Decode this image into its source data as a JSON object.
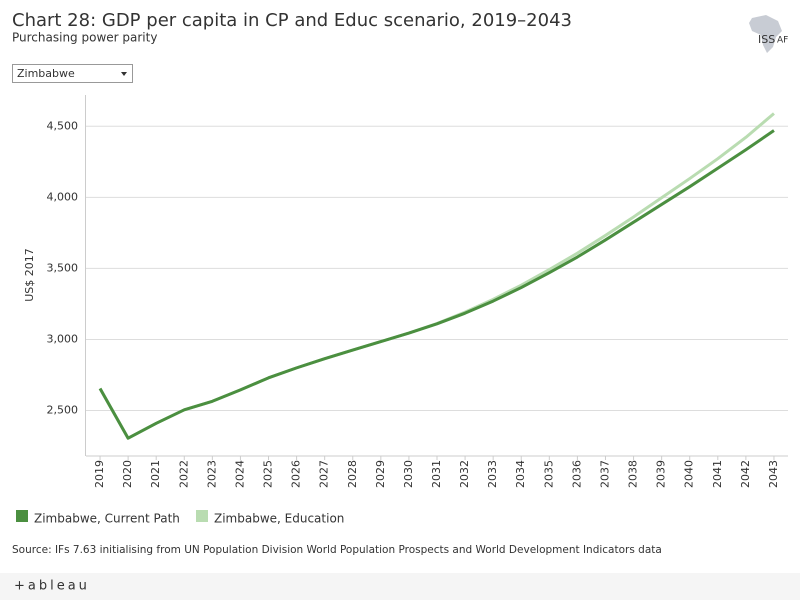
{
  "chart_data": {
    "type": "line",
    "title": "Chart 28: GDP per capita in CP and Educ scenario, 2019–2043",
    "subtitle": "Purchasing power parity",
    "y_label": "US$ 2017",
    "x": [
      2019,
      2020,
      2021,
      2022,
      2023,
      2024,
      2025,
      2026,
      2027,
      2028,
      2029,
      2030,
      2031,
      2032,
      2033,
      2034,
      2035,
      2036,
      2037,
      2038,
      2039,
      2040,
      2041,
      2042,
      2043
    ],
    "xlim": [
      2018.5,
      2043.5
    ],
    "series": [
      {
        "name": "Zimbabwe, Education",
        "color": "#b9dcb1",
        "values": [
          2655,
          2305,
          2410,
          2505,
          2565,
          2645,
          2730,
          2800,
          2865,
          2925,
          2985,
          3045,
          3112,
          3192,
          3282,
          3382,
          3492,
          3607,
          3732,
          3862,
          3997,
          4132,
          4272,
          4422,
          4590
        ]
      },
      {
        "name": "Zimbabwe, Current Path",
        "color": "#4b8f40",
        "values": [
          2655,
          2305,
          2410,
          2505,
          2565,
          2645,
          2730,
          2800,
          2865,
          2925,
          2985,
          3045,
          3110,
          3185,
          3270,
          3365,
          3470,
          3580,
          3700,
          3825,
          3950,
          4075,
          4205,
          4335,
          4470
        ]
      }
    ],
    "ylim": [
      2180,
      4720
    ],
    "yticks": [
      {
        "value": 2500,
        "label": "2,500"
      },
      {
        "value": 3000,
        "label": "3,000"
      },
      {
        "value": 3500,
        "label": "3,500"
      },
      {
        "value": 4000,
        "label": "4,000"
      },
      {
        "value": 4500,
        "label": "4,500"
      }
    ],
    "grid": true
  },
  "dropdown": "Zimbabwe",
  "source": "Source: IFs 7.63 initialising from UN Population Division World Population Prospects and World Development Indicators data",
  "logo": "ISS",
  "logo_suffix": "AF",
  "footer": "+ableau"
}
